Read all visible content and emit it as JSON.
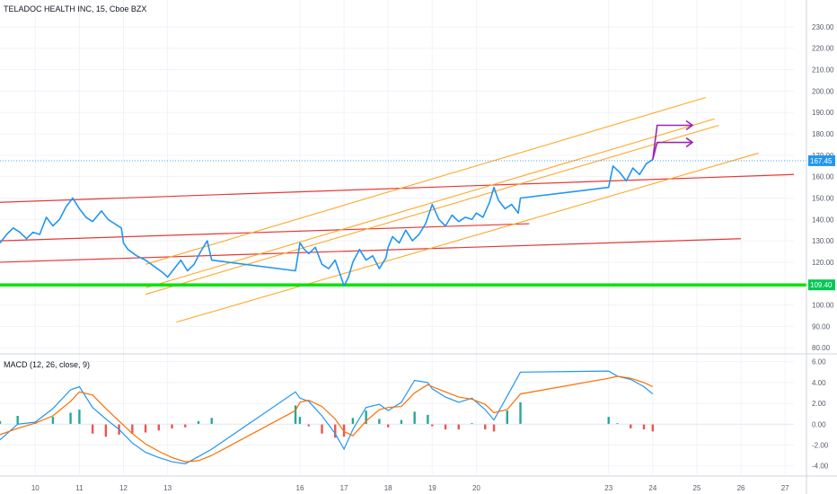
{
  "header": {
    "title": "TELADOC HEALTH INC, 15, Cboe BZX"
  },
  "macd_label": "MACD (12, 26, close, 9)",
  "colors": {
    "price": "#2196f3",
    "channel_red": "#e53935",
    "channel_orange": "#ffa726",
    "support": "#00e600",
    "arrows": "#9c27b0",
    "last_price_line": "#2196f3",
    "macd_line": "#2196f3",
    "signal_line": "#ff6d00",
    "hist_pos": "#26a69a",
    "hist_neg": "#ef5350"
  },
  "chart_data": [
    {
      "type": "line",
      "name": "price",
      "title": "TELADOC HEALTH INC, 15, Cboe BZX",
      "xlabel": "",
      "ylabel": "",
      "x_ticks": [
        "10",
        "11",
        "12",
        "13",
        "16",
        "17",
        "18",
        "19",
        "20",
        "23",
        "24",
        "25",
        "26",
        "27"
      ],
      "y_ticks": [
        "80.00",
        "90.00",
        "100.00",
        "110.00",
        "120.00",
        "130.00",
        "140.00",
        "150.00",
        "160.00",
        "170.00",
        "180.00",
        "190.00",
        "200.00",
        "210.00",
        "220.00",
        "230.00"
      ],
      "ylim": [
        78,
        235
      ],
      "xlim": [
        9.2,
        27.2
      ],
      "series": [
        {
          "x": [
            9.2,
            9.35,
            9.5,
            9.65,
            9.8,
            9.95,
            10.1,
            10.25,
            10.4,
            10.55,
            10.7,
            10.85,
            11.0,
            11.15,
            11.3,
            11.5,
            11.65,
            11.8,
            11.95,
            12.0,
            12.1,
            12.3,
            12.5,
            12.7,
            12.9,
            13.0,
            13.15,
            13.3,
            13.45,
            13.6,
            13.75,
            13.9,
            14.0,
            15.9,
            16.0,
            16.1,
            16.2,
            16.35,
            16.5,
            16.65,
            16.8,
            16.95,
            17.0,
            17.1,
            17.2,
            17.35,
            17.5,
            17.65,
            17.8,
            17.95,
            18.0,
            18.1,
            18.25,
            18.4,
            18.55,
            18.7,
            18.85,
            19.0,
            19.15,
            19.3,
            19.45,
            19.6,
            19.75,
            19.9,
            20.0,
            20.15,
            20.3,
            20.4,
            20.5,
            20.65,
            20.8,
            20.95,
            21.0,
            23.0,
            23.1,
            23.25,
            23.4,
            23.55,
            23.7,
            23.85,
            24.0
          ],
          "y": [
            129,
            133,
            136,
            134,
            131,
            134,
            133,
            141,
            137,
            140,
            146,
            150,
            145,
            141,
            139,
            144,
            140,
            138,
            136,
            129,
            126,
            123,
            121,
            118,
            115,
            113,
            117,
            121,
            116,
            119,
            125,
            130,
            121,
            116,
            129,
            126,
            124,
            127,
            119,
            117,
            121,
            112,
            109,
            113,
            120,
            126,
            121,
            123,
            117,
            122,
            127,
            132,
            129,
            135,
            130,
            133,
            138,
            147,
            140,
            137,
            142,
            139,
            141,
            140,
            143,
            141,
            148,
            155,
            149,
            145,
            147,
            143,
            150,
            155,
            165,
            162,
            158,
            164,
            161,
            166,
            168
          ]
        }
      ]
    },
    {
      "type": "bar",
      "name": "MACD (12, 26, close, 9)",
      "title": "MACD (12, 26, close, 9)",
      "y_ticks": [
        "-4.00",
        "-2.00",
        "0.00",
        "2.00",
        "4.00",
        "6.00"
      ],
      "ylim": [
        -4.8,
        6.4
      ],
      "series": [
        {
          "name": "MACD",
          "x": [
            9.2,
            9.6,
            10.0,
            10.4,
            10.8,
            11.0,
            11.3,
            11.6,
            11.9,
            12.2,
            12.5,
            12.8,
            13.1,
            13.4,
            13.7,
            14.0,
            15.9,
            16.0,
            16.2,
            16.5,
            16.8,
            17.0,
            17.2,
            17.5,
            17.8,
            18.0,
            18.3,
            18.6,
            18.9,
            19.0,
            19.3,
            19.6,
            19.9,
            20.2,
            20.4,
            20.7,
            21.0,
            23.0,
            23.2,
            23.5,
            23.8,
            24.0
          ],
          "values": [
            -1.5,
            0.0,
            0.2,
            1.5,
            3.3,
            3.6,
            1.6,
            0.5,
            -0.5,
            -1.8,
            -2.7,
            -3.2,
            -3.6,
            -3.8,
            -3.1,
            -2.4,
            3.1,
            2.5,
            2.2,
            0.8,
            -0.9,
            -2.4,
            -0.5,
            1.6,
            1.9,
            1.3,
            2.1,
            4.2,
            4.0,
            3.4,
            2.6,
            2.1,
            2.5,
            1.4,
            0.4,
            2.7,
            5.0,
            5.1,
            4.6,
            4.3,
            3.6,
            2.9
          ]
        },
        {
          "name": "Signal",
          "x": [
            9.2,
            9.6,
            10.0,
            10.4,
            10.8,
            11.0,
            11.3,
            11.6,
            11.9,
            12.2,
            12.5,
            12.8,
            13.1,
            13.4,
            13.7,
            14.0,
            15.9,
            16.0,
            16.2,
            16.5,
            16.8,
            17.0,
            17.2,
            17.5,
            17.8,
            18.0,
            18.3,
            18.6,
            18.9,
            19.0,
            19.3,
            19.6,
            19.9,
            20.2,
            20.4,
            20.7,
            21.0,
            23.0,
            23.2,
            23.5,
            23.8,
            24.0
          ],
          "values": [
            -1.0,
            -0.4,
            0.1,
            0.8,
            2.2,
            3.1,
            2.8,
            1.5,
            0.3,
            -0.9,
            -1.9,
            -2.6,
            -3.2,
            -3.6,
            -3.5,
            -3.0,
            1.3,
            2.1,
            2.3,
            1.7,
            0.5,
            -0.7,
            -1.1,
            0.3,
            1.4,
            1.6,
            1.7,
            3.0,
            3.8,
            3.6,
            3.1,
            2.6,
            2.4,
            1.9,
            1.1,
            1.4,
            2.9,
            4.4,
            4.6,
            4.4,
            4.0,
            3.6
          ]
        },
        {
          "name": "Histogram",
          "x": [
            9.2,
            9.6,
            10.0,
            10.4,
            10.8,
            11.0,
            11.3,
            11.6,
            11.9,
            12.2,
            12.5,
            12.8,
            13.1,
            13.4,
            13.7,
            14.0,
            15.9,
            16.0,
            16.2,
            16.5,
            16.8,
            17.0,
            17.2,
            17.5,
            17.8,
            18.0,
            18.3,
            18.6,
            18.9,
            19.0,
            19.3,
            19.6,
            19.9,
            20.2,
            20.4,
            20.7,
            21.0,
            23.0,
            23.2,
            23.5,
            23.8,
            24.0
          ],
          "values": [
            0.3,
            0.8,
            0.2,
            0.7,
            1.1,
            1.4,
            -0.9,
            -1.2,
            -1.0,
            -0.9,
            -0.8,
            -0.6,
            -0.4,
            -0.3,
            0.3,
            0.6,
            1.8,
            0.7,
            -0.2,
            -0.9,
            -1.3,
            -1.2,
            0.6,
            1.3,
            0.5,
            -0.3,
            0.4,
            1.2,
            0.9,
            -0.2,
            -0.5,
            -0.5,
            0.1,
            -0.5,
            -0.7,
            1.3,
            2.1,
            0.7,
            0.1,
            -0.4,
            -0.5,
            -0.7
          ]
        }
      ]
    }
  ],
  "annotations": {
    "last_price": {
      "value": 167.45,
      "label": "167.45"
    },
    "support": {
      "value": 109.4,
      "label": "109.40"
    },
    "red_lines": [
      {
        "from": [
          9.2,
          148
        ],
        "to": [
          27.2,
          161
        ]
      },
      {
        "from": [
          9.2,
          130
        ],
        "to": [
          21.2,
          138
        ]
      },
      {
        "from": [
          9.2,
          120
        ],
        "to": [
          26.0,
          131
        ]
      }
    ],
    "orange_lines": [
      {
        "from": [
          12.5,
          119
        ],
        "to": [
          25.2,
          197
        ]
      },
      {
        "from": [
          12.5,
          108
        ],
        "to": [
          25.4,
          187
        ]
      },
      {
        "from": [
          12.5,
          105
        ],
        "to": [
          25.5,
          184
        ]
      },
      {
        "from": [
          13.2,
          92
        ],
        "to": [
          26.4,
          171
        ]
      }
    ],
    "arrows": [
      {
        "from": [
          24.0,
          168
        ],
        "via": [
          24.1,
          184
        ],
        "to": [
          24.9,
          184
        ]
      },
      {
        "from": [
          24.0,
          168
        ],
        "via": [
          24.1,
          176
        ],
        "to": [
          24.9,
          176
        ]
      }
    ]
  }
}
